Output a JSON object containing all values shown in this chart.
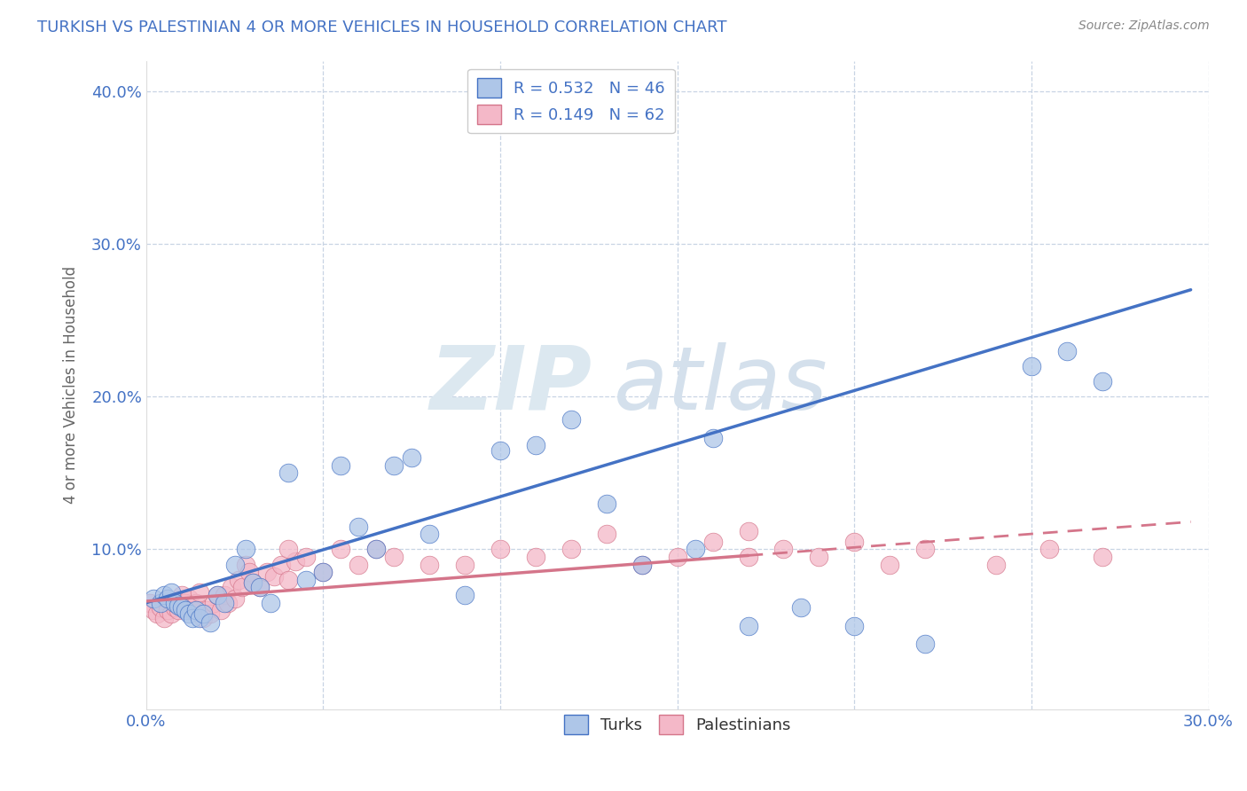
{
  "title": "TURKISH VS PALESTINIAN 4 OR MORE VEHICLES IN HOUSEHOLD CORRELATION CHART",
  "source_text": "Source: ZipAtlas.com",
  "ylabel": "4 or more Vehicles in Household",
  "xlim": [
    0.0,
    0.3
  ],
  "ylim": [
    -0.005,
    0.42
  ],
  "xticks": [
    0.0,
    0.05,
    0.1,
    0.15,
    0.2,
    0.25,
    0.3
  ],
  "xticklabels": [
    "0.0%",
    "",
    "",
    "",
    "",
    "",
    "30.0%"
  ],
  "yticks": [
    0.0,
    0.1,
    0.2,
    0.3,
    0.4
  ],
  "yticklabels": [
    "",
    "10.0%",
    "20.0%",
    "30.0%",
    "40.0%"
  ],
  "R_turks": 0.532,
  "N_turks": 46,
  "R_palestinians": 0.149,
  "N_palestinians": 62,
  "turks_color": "#aec6e8",
  "turks_line_color": "#4472c4",
  "palestinians_color": "#f4b8c8",
  "palestinians_line_color": "#d4758a",
  "turks_x": [
    0.002,
    0.004,
    0.005,
    0.006,
    0.007,
    0.008,
    0.009,
    0.01,
    0.011,
    0.012,
    0.013,
    0.014,
    0.015,
    0.016,
    0.018,
    0.02,
    0.022,
    0.025,
    0.028,
    0.03,
    0.032,
    0.035,
    0.04,
    0.045,
    0.05,
    0.055,
    0.06,
    0.065,
    0.07,
    0.075,
    0.08,
    0.09,
    0.1,
    0.11,
    0.12,
    0.13,
    0.14,
    0.155,
    0.16,
    0.17,
    0.185,
    0.2,
    0.22,
    0.25,
    0.26,
    0.27
  ],
  "turks_y": [
    0.068,
    0.065,
    0.07,
    0.068,
    0.072,
    0.065,
    0.063,
    0.062,
    0.06,
    0.058,
    0.055,
    0.06,
    0.055,
    0.058,
    0.052,
    0.07,
    0.065,
    0.09,
    0.1,
    0.078,
    0.075,
    0.065,
    0.15,
    0.08,
    0.085,
    0.155,
    0.115,
    0.1,
    0.155,
    0.16,
    0.11,
    0.07,
    0.165,
    0.168,
    0.185,
    0.13,
    0.09,
    0.1,
    0.173,
    0.05,
    0.062,
    0.05,
    0.038,
    0.22,
    0.23,
    0.21
  ],
  "palestinians_x": [
    0.001,
    0.002,
    0.003,
    0.004,
    0.005,
    0.006,
    0.007,
    0.008,
    0.009,
    0.01,
    0.011,
    0.012,
    0.013,
    0.014,
    0.015,
    0.016,
    0.017,
    0.018,
    0.019,
    0.02,
    0.021,
    0.022,
    0.023,
    0.024,
    0.025,
    0.026,
    0.027,
    0.028,
    0.029,
    0.03,
    0.032,
    0.034,
    0.036,
    0.038,
    0.04,
    0.042,
    0.045,
    0.05,
    0.055,
    0.06,
    0.065,
    0.07,
    0.08,
    0.09,
    0.1,
    0.11,
    0.12,
    0.13,
    0.14,
    0.15,
    0.16,
    0.17,
    0.18,
    0.19,
    0.2,
    0.21,
    0.22,
    0.24,
    0.255,
    0.27,
    0.17,
    0.04
  ],
  "palestinians_y": [
    0.065,
    0.06,
    0.058,
    0.062,
    0.055,
    0.06,
    0.058,
    0.062,
    0.06,
    0.07,
    0.065,
    0.068,
    0.06,
    0.065,
    0.072,
    0.055,
    0.06,
    0.058,
    0.065,
    0.07,
    0.06,
    0.07,
    0.065,
    0.075,
    0.068,
    0.08,
    0.075,
    0.09,
    0.085,
    0.078,
    0.075,
    0.085,
    0.082,
    0.09,
    0.08,
    0.092,
    0.095,
    0.085,
    0.1,
    0.09,
    0.1,
    0.095,
    0.09,
    0.09,
    0.1,
    0.095,
    0.1,
    0.11,
    0.09,
    0.095,
    0.105,
    0.095,
    0.1,
    0.095,
    0.105,
    0.09,
    0.1,
    0.09,
    0.1,
    0.095,
    0.112,
    0.1
  ],
  "background_color": "#ffffff",
  "grid_color": "#c8d4e4",
  "title_color": "#4472c4",
  "axis_label_color": "#666666",
  "tick_color": "#4472c4",
  "watermark_zip_color": "#dce8f0",
  "watermark_atlas_color": "#d4e0ec"
}
